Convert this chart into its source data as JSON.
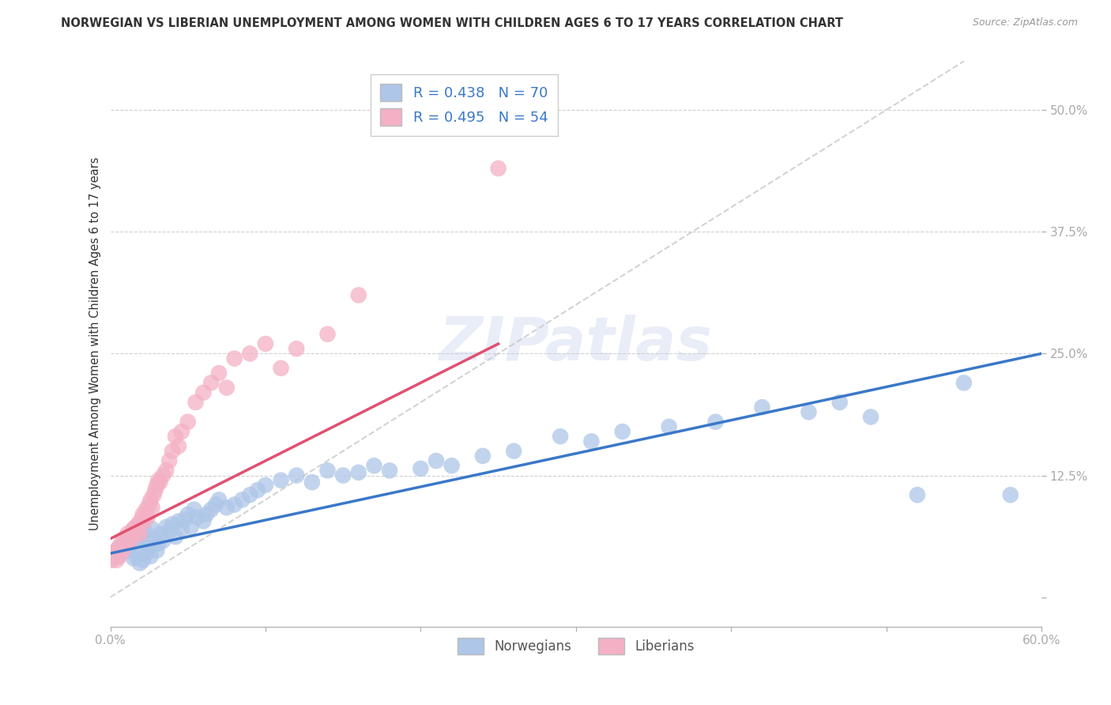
{
  "title": "NORWEGIAN VS LIBERIAN UNEMPLOYMENT AMONG WOMEN WITH CHILDREN AGES 6 TO 17 YEARS CORRELATION CHART",
  "source": "Source: ZipAtlas.com",
  "ylabel": "Unemployment Among Women with Children Ages 6 to 17 years",
  "xlim": [
    0.0,
    0.6
  ],
  "ylim": [
    -0.03,
    0.55
  ],
  "norwegian_R": 0.438,
  "norwegian_N": 70,
  "liberian_R": 0.495,
  "liberian_N": 54,
  "norwegian_color": "#aec6e8",
  "liberian_color": "#f4b0c4",
  "norwegian_line_color": "#3a78c9",
  "liberian_line_color": "#e05070",
  "ref_line_color": "#c8c8c8",
  "background_color": "#ffffff",
  "norwegian_x": [
    0.005,
    0.007,
    0.01,
    0.012,
    0.013,
    0.015,
    0.016,
    0.017,
    0.018,
    0.019,
    0.02,
    0.021,
    0.022,
    0.023,
    0.024,
    0.025,
    0.026,
    0.027,
    0.028,
    0.03,
    0.031,
    0.032,
    0.034,
    0.036,
    0.038,
    0.04,
    0.042,
    0.044,
    0.046,
    0.048,
    0.05,
    0.052,
    0.054,
    0.056,
    0.06,
    0.062,
    0.065,
    0.068,
    0.07,
    0.075,
    0.08,
    0.085,
    0.09,
    0.095,
    0.1,
    0.11,
    0.12,
    0.13,
    0.14,
    0.15,
    0.16,
    0.17,
    0.18,
    0.2,
    0.21,
    0.22,
    0.24,
    0.26,
    0.29,
    0.31,
    0.33,
    0.36,
    0.39,
    0.42,
    0.45,
    0.47,
    0.49,
    0.52,
    0.55,
    0.58
  ],
  "norwegian_y": [
    0.05,
    0.045,
    0.055,
    0.048,
    0.052,
    0.04,
    0.058,
    0.042,
    0.06,
    0.035,
    0.065,
    0.038,
    0.068,
    0.045,
    0.055,
    0.05,
    0.042,
    0.07,
    0.06,
    0.048,
    0.055,
    0.065,
    0.058,
    0.072,
    0.068,
    0.075,
    0.062,
    0.078,
    0.07,
    0.08,
    0.085,
    0.072,
    0.09,
    0.082,
    0.078,
    0.085,
    0.09,
    0.095,
    0.1,
    0.092,
    0.095,
    0.1,
    0.105,
    0.11,
    0.115,
    0.12,
    0.125,
    0.118,
    0.13,
    0.125,
    0.128,
    0.135,
    0.13,
    0.132,
    0.14,
    0.135,
    0.145,
    0.15,
    0.165,
    0.16,
    0.17,
    0.175,
    0.18,
    0.195,
    0.19,
    0.2,
    0.185,
    0.105,
    0.22,
    0.105
  ],
  "liberian_x": [
    0.0,
    0.001,
    0.002,
    0.003,
    0.004,
    0.005,
    0.006,
    0.007,
    0.008,
    0.009,
    0.01,
    0.011,
    0.012,
    0.013,
    0.014,
    0.015,
    0.016,
    0.017,
    0.018,
    0.019,
    0.02,
    0.021,
    0.022,
    0.023,
    0.024,
    0.025,
    0.026,
    0.027,
    0.028,
    0.029,
    0.03,
    0.031,
    0.032,
    0.034,
    0.036,
    0.038,
    0.04,
    0.042,
    0.044,
    0.046,
    0.05,
    0.055,
    0.06,
    0.065,
    0.07,
    0.075,
    0.08,
    0.09,
    0.1,
    0.11,
    0.12,
    0.14,
    0.16,
    0.25
  ],
  "liberian_y": [
    0.04,
    0.038,
    0.042,
    0.045,
    0.038,
    0.05,
    0.042,
    0.055,
    0.048,
    0.06,
    0.055,
    0.065,
    0.062,
    0.058,
    0.068,
    0.07,
    0.072,
    0.068,
    0.075,
    0.065,
    0.08,
    0.085,
    0.078,
    0.09,
    0.082,
    0.095,
    0.1,
    0.092,
    0.105,
    0.11,
    0.115,
    0.12,
    0.118,
    0.125,
    0.13,
    0.14,
    0.15,
    0.165,
    0.155,
    0.17,
    0.18,
    0.2,
    0.21,
    0.22,
    0.23,
    0.215,
    0.245,
    0.25,
    0.26,
    0.235,
    0.255,
    0.27,
    0.31,
    0.44
  ],
  "nor_line_x": [
    0.0,
    0.6
  ],
  "nor_line_y": [
    0.045,
    0.25
  ],
  "lib_line_x": [
    0.0,
    0.25
  ],
  "lib_line_y": [
    0.06,
    0.26
  ],
  "ref_line_x": [
    0.0,
    0.55
  ],
  "ref_line_y": [
    0.0,
    0.55
  ]
}
